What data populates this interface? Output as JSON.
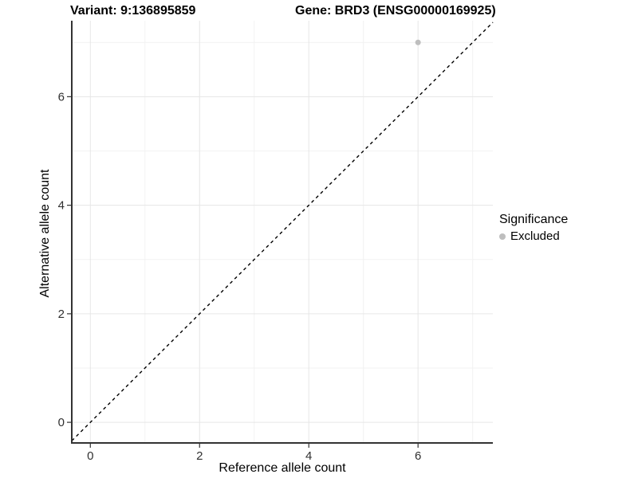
{
  "chart_data": {
    "type": "scatter",
    "title_left": "Variant: 9:136895859",
    "title_right": "Gene: BRD3 (ENSG00000169925)",
    "xlabel": "Reference allele count",
    "ylabel": "Alternative allele count",
    "x_ticks": [
      0,
      2,
      4,
      6
    ],
    "x_minor_ticks": [
      1,
      3,
      5,
      7
    ],
    "y_ticks": [
      0,
      2,
      4,
      6
    ],
    "y_minor_ticks": [
      1,
      3,
      5,
      7
    ],
    "xlim": [
      -0.34,
      7.37
    ],
    "ylim": [
      -0.38,
      7.4
    ],
    "grid": true,
    "points": [
      {
        "x": 6,
        "y": 7,
        "series": "Excluded",
        "color": "#bebebe"
      }
    ],
    "reference_line": {
      "type": "identity",
      "slope": 1,
      "intercept": 0,
      "style": "dashed",
      "color": "#000000"
    },
    "legend": {
      "title": "Significance",
      "position": "right",
      "entries": [
        {
          "label": "Excluded",
          "color": "#bebebe"
        }
      ]
    },
    "colors": {
      "grid_major": "#e6e6e6",
      "grid_minor": "#f2f2f2",
      "axis_line": "#333333",
      "tick_label": "#303030",
      "point": "#bebebe"
    }
  }
}
